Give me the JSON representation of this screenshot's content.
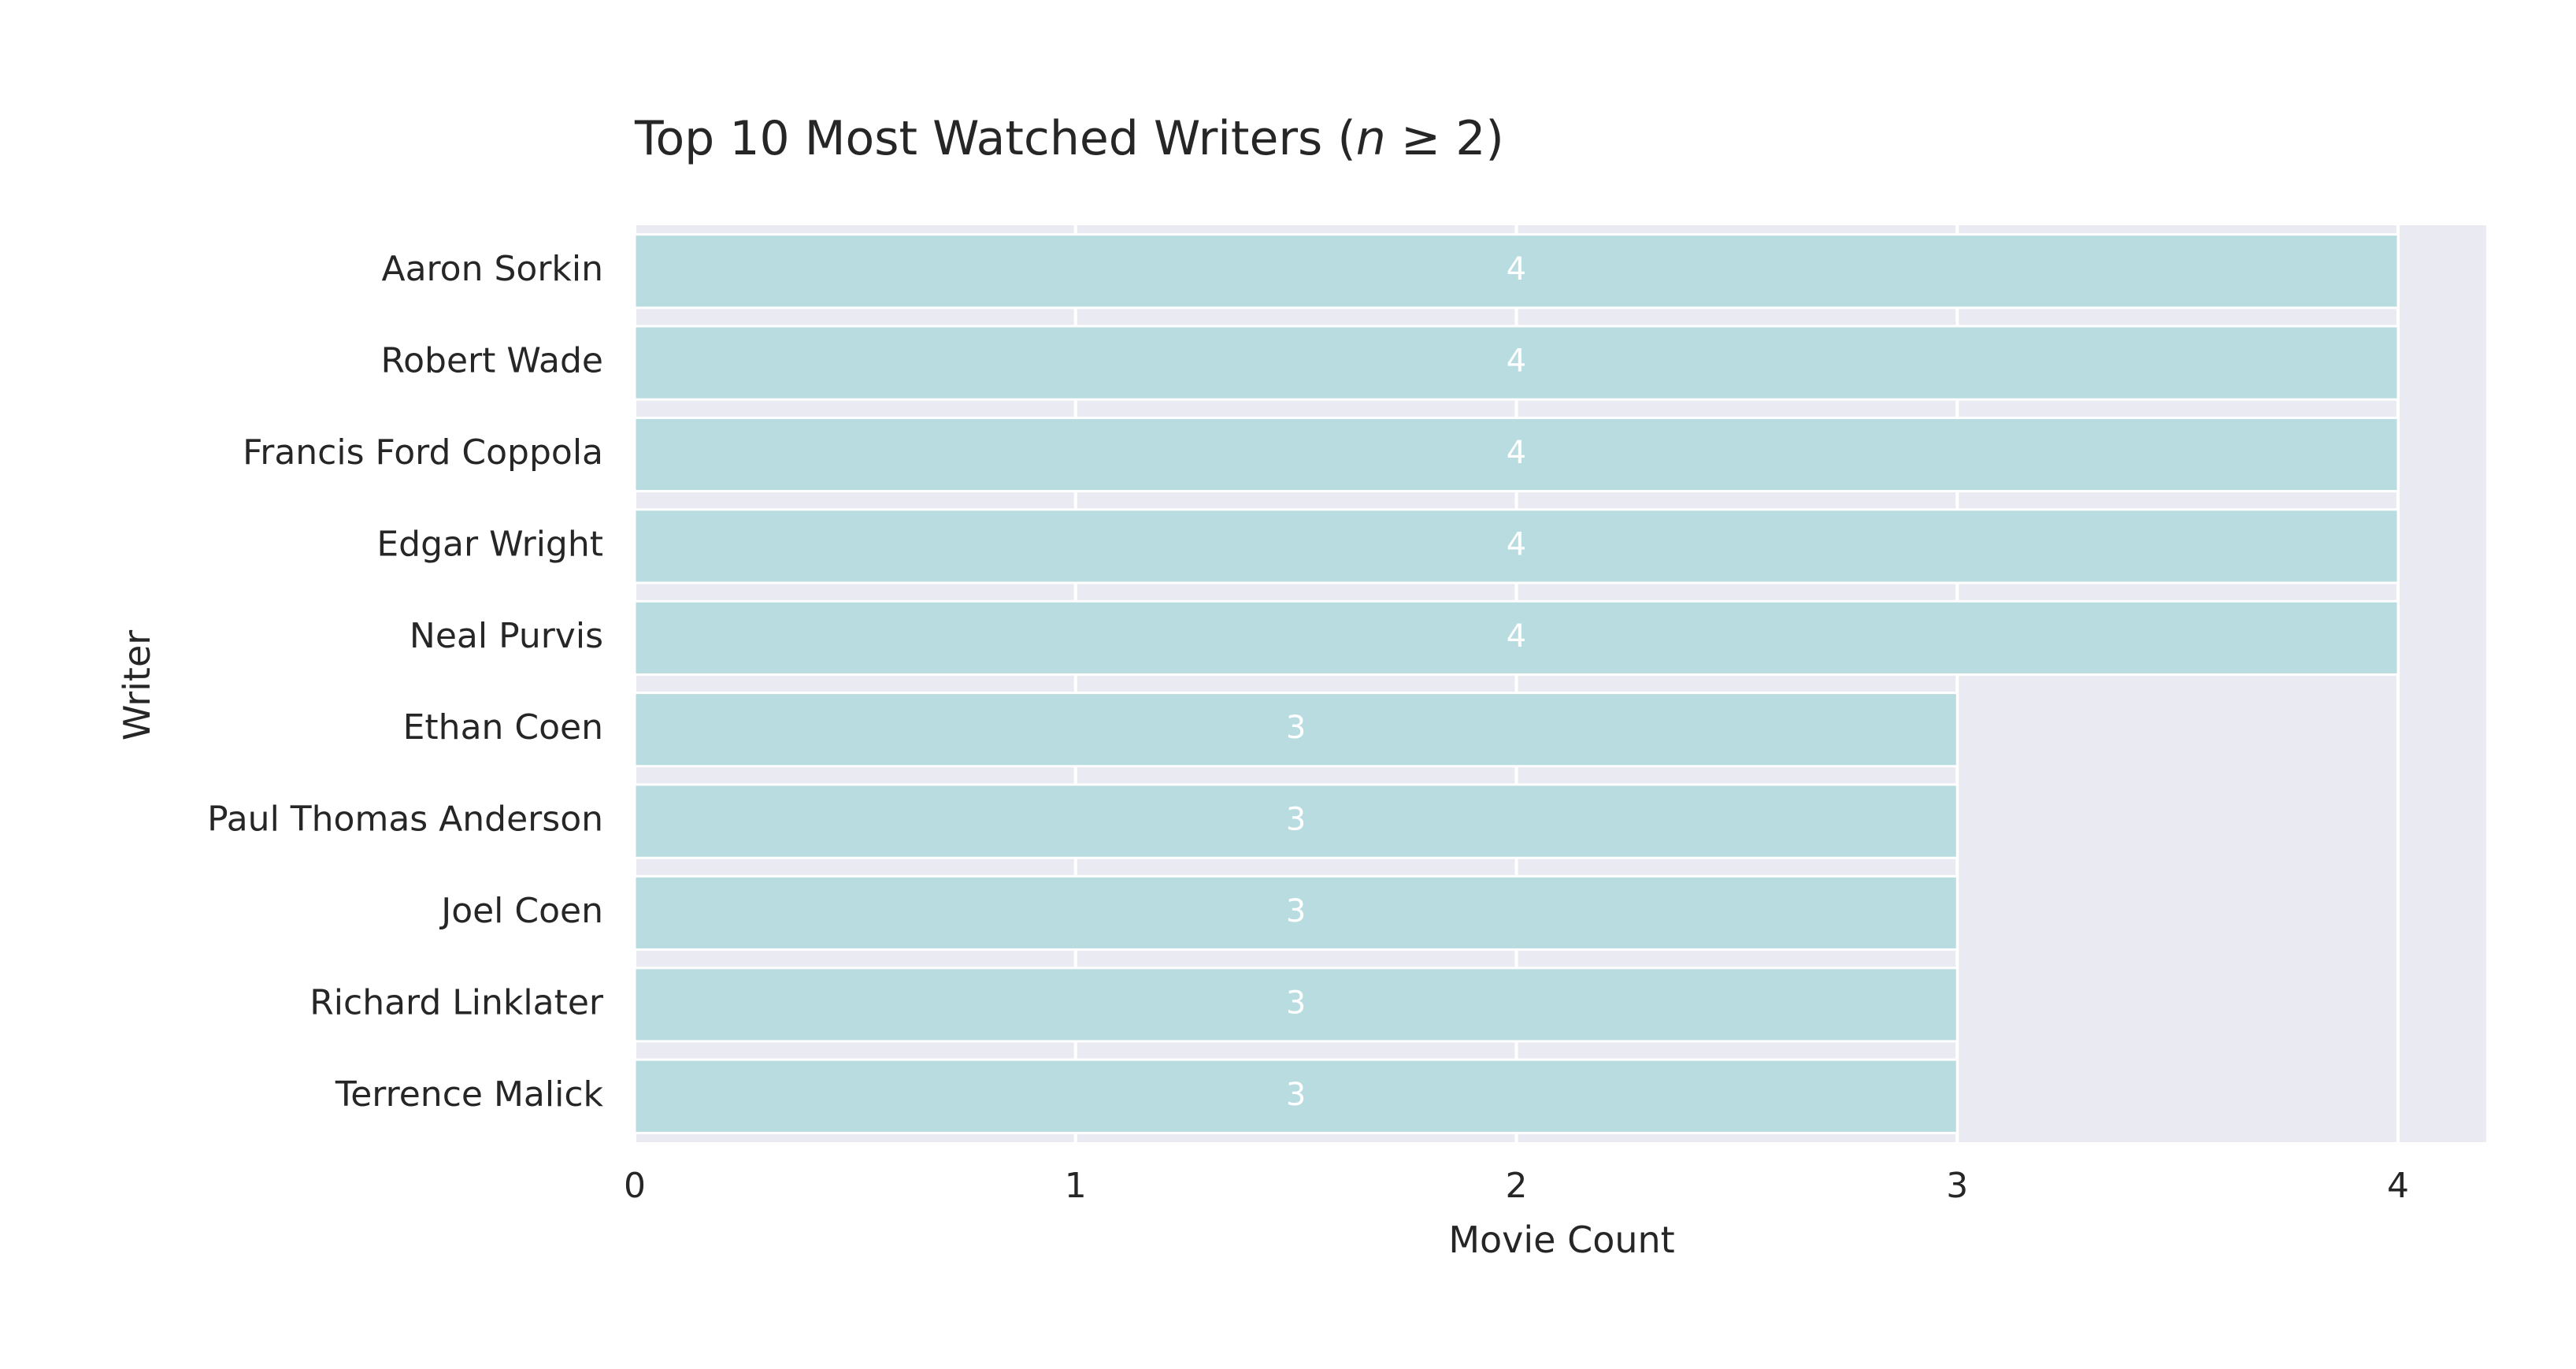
{
  "chart_data": {
    "type": "bar",
    "orientation": "horizontal",
    "title_prefix": "Top 10 Most Watched Writers (",
    "title_var": "n",
    "title_suffix": " ≥ 2)",
    "xlabel": "Movie Count",
    "ylabel": "Writer",
    "xlim": [
      0,
      4.2
    ],
    "xticks": [
      0,
      1,
      2,
      3,
      4
    ],
    "grid": true,
    "categories": [
      "Aaron Sorkin",
      "Robert Wade",
      "Francis Ford Coppola",
      "Edgar Wright",
      "Neal Purvis",
      "Ethan Coen",
      "Paul Thomas Anderson",
      "Joel Coen",
      "Richard Linklater",
      "Terrence Malick"
    ],
    "values": [
      4,
      4,
      4,
      4,
      4,
      3,
      3,
      3,
      3,
      3
    ],
    "data_labels": [
      "4",
      "4",
      "4",
      "4",
      "4",
      "3",
      "3",
      "3",
      "3",
      "3"
    ]
  },
  "colors": {
    "bar": "#b8dce0",
    "plot_background": "#eaeaf2",
    "grid": "#ffffff",
    "text": "#262626",
    "bar_label": "#ffffff"
  }
}
